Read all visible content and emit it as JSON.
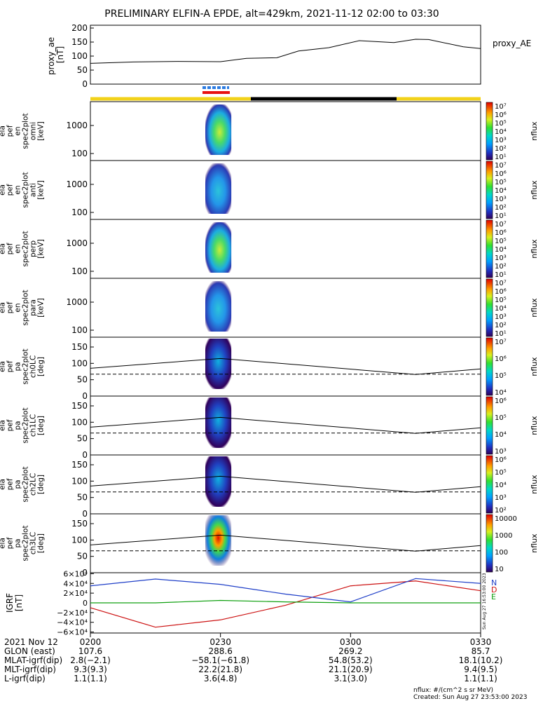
{
  "title": "PRELIMINARY ELFIN-A EPDE, alt=429km, 2021-11-12 02:00 to 03:30",
  "proxy_panel": {
    "ylabel_lines": [
      "proxy_ae",
      "[nT]"
    ],
    "legend": "proxy_AE",
    "yticks": [
      "0",
      "50",
      "100",
      "150",
      "200"
    ],
    "ylim": [
      0,
      210
    ]
  },
  "spec_panels": [
    {
      "ylabel_lines": [
        "ela",
        "pef",
        "en",
        "spec2plot",
        "omni",
        "[keV]"
      ],
      "yticks": [
        "100",
        "1000"
      ],
      "cbar_ticks": [
        "10¹",
        "10²",
        "10³",
        "10⁴",
        "10⁵",
        "10⁶",
        "10⁷"
      ],
      "cbar_label": "nflux"
    },
    {
      "ylabel_lines": [
        "ela",
        "pef",
        "en",
        "spec2plot",
        "anti",
        "[keV]"
      ],
      "yticks": [
        "100",
        "1000"
      ],
      "cbar_ticks": [
        "10¹",
        "10²",
        "10³",
        "10⁴",
        "10⁵",
        "10⁶",
        "10⁷"
      ],
      "cbar_label": "nflux"
    },
    {
      "ylabel_lines": [
        "ela",
        "pef",
        "en",
        "spec2plot",
        "perp",
        "[keV]"
      ],
      "yticks": [
        "100",
        "1000"
      ],
      "cbar_ticks": [
        "10¹",
        "10²",
        "10³",
        "10⁴",
        "10⁵",
        "10⁶",
        "10⁷"
      ],
      "cbar_label": "nflux"
    },
    {
      "ylabel_lines": [
        "ela",
        "pef",
        "en",
        "spec2plot",
        "para",
        "[keV]"
      ],
      "yticks": [
        "100",
        "1000"
      ],
      "cbar_ticks": [
        "10¹",
        "10²",
        "10³",
        "10⁴",
        "10⁵",
        "10⁶",
        "10⁷"
      ],
      "cbar_label": "nflux"
    }
  ],
  "pa_panels": [
    {
      "ylabel_lines": [
        "ela",
        "pef",
        "pa",
        "spec2plot",
        "ch0LC",
        "[deg]"
      ],
      "yticks": [
        "0",
        "50",
        "100",
        "150"
      ],
      "cbar_ticks": [
        "10⁴",
        "10⁵",
        "10⁶",
        "10⁷"
      ],
      "cbar_label": "nflux"
    },
    {
      "ylabel_lines": [
        "ela",
        "pef",
        "pa",
        "spec2plot",
        "ch1LC",
        "[deg]"
      ],
      "yticks": [
        "0",
        "50",
        "100",
        "150"
      ],
      "cbar_ticks": [
        "10³",
        "10⁴",
        "10⁵",
        "10⁶"
      ],
      "cbar_label": "nflux"
    },
    {
      "ylabel_lines": [
        "ela",
        "pef",
        "pa",
        "spec2plot",
        "ch2LC",
        "[deg]"
      ],
      "yticks": [
        "0",
        "50",
        "100",
        "150"
      ],
      "cbar_ticks": [
        "10²",
        "10³",
        "10⁴",
        "10⁵",
        "10⁶"
      ],
      "cbar_label": "nflux"
    },
    {
      "ylabel_lines": [
        "ela",
        "pef",
        "pa",
        "spec2plot",
        "ch3LC",
        "[deg]"
      ],
      "yticks": [
        "0",
        "50",
        "100",
        "150"
      ],
      "cbar_ticks": [
        "10",
        "100",
        "1000",
        "10000"
      ],
      "cbar_label": "nflux"
    }
  ],
  "igrf_panel": {
    "ylabel_lines": [
      "IGRF",
      "[nT]"
    ],
    "yticks": [
      "−6×10⁴",
      "−4×10⁴",
      "−2×10⁴",
      "0",
      "2×10⁴",
      "4×10⁴",
      "6×10⁴"
    ],
    "legend": [
      "N",
      "D",
      "E"
    ]
  },
  "chart_data": {
    "type": "line",
    "x_range": [
      "02:00",
      "03:30"
    ],
    "series": [
      {
        "name": "proxy_AE",
        "x": [
          0,
          10,
          20,
          30,
          36,
          43,
          48,
          55,
          62,
          70,
          75,
          78,
          86,
          90
        ],
        "values": [
          74,
          79,
          81,
          80,
          92,
          94,
          118,
          130,
          155,
          148,
          160,
          159,
          133,
          127
        ]
      }
    ],
    "spectrogram_time_window_min": [
      26.5,
      32.5
    ],
    "loss_cone_deg": {
      "solid_x": [
        0,
        30,
        75,
        90
      ],
      "solid": [
        85,
        115,
        66,
        83
      ],
      "dashed": 67
    },
    "igrf_x_min": [
      0,
      15,
      30,
      45,
      60,
      75,
      90
    ],
    "igrf_north_10e4": [
      3.5,
      4.9,
      3.8,
      1.8,
      0.2,
      5.0,
      4.0
    ],
    "igrf_down_10e4": [
      -1.0,
      -5.0,
      -3.5,
      -0.5,
      3.5,
      4.5,
      2.5
    ],
    "igrf_east_10e4": [
      0.0,
      0.0,
      0.5,
      0.2,
      0.0,
      0.0,
      0.0
    ]
  },
  "time_axis": {
    "ticks": [
      "0200",
      "0230",
      "0300",
      "0330"
    ],
    "rows": [
      {
        "label": "2021 Nov 12",
        "values": [
          "0200",
          "0230",
          "0300",
          "0330"
        ]
      },
      {
        "label": "GLON (east)",
        "values": [
          "107.6",
          "288.6",
          "269.2",
          "85.7"
        ]
      },
      {
        "label": "MLAT-igrf(dip)",
        "values": [
          "2.8(−2.1)",
          "−58.1(−61.8)",
          "54.8(53.2)",
          "18.1(10.2)"
        ]
      },
      {
        "label": "MLT-igrf(dip)",
        "values": [
          "9.3(9.3)",
          "22.2(21.8)",
          "21.1(20.9)",
          "9.4(9.5)"
        ]
      },
      {
        "label": "L-igrf(dip)",
        "values": [
          "1.1(1.1)",
          "3.6(4.8)",
          "3.1(3.0)",
          "1.1(1.1)"
        ]
      }
    ]
  },
  "footer": {
    "units": "nflux: #/(cm^2 s sr MeV)",
    "created": "Created: Sun Aug 27 23:53:00 2023",
    "vertical_stamp": "Sun Aug 27 16:53:00 2023"
  },
  "colors": {
    "line": "#000000",
    "igrf_n": "#1f3fc8",
    "igrf_d": "#cc1010",
    "igrf_e": "#10a010",
    "sunlit": "#f2d21a",
    "shadow": "#000000",
    "marker_blue": "#2b7be0",
    "marker_red": "#e81010"
  }
}
